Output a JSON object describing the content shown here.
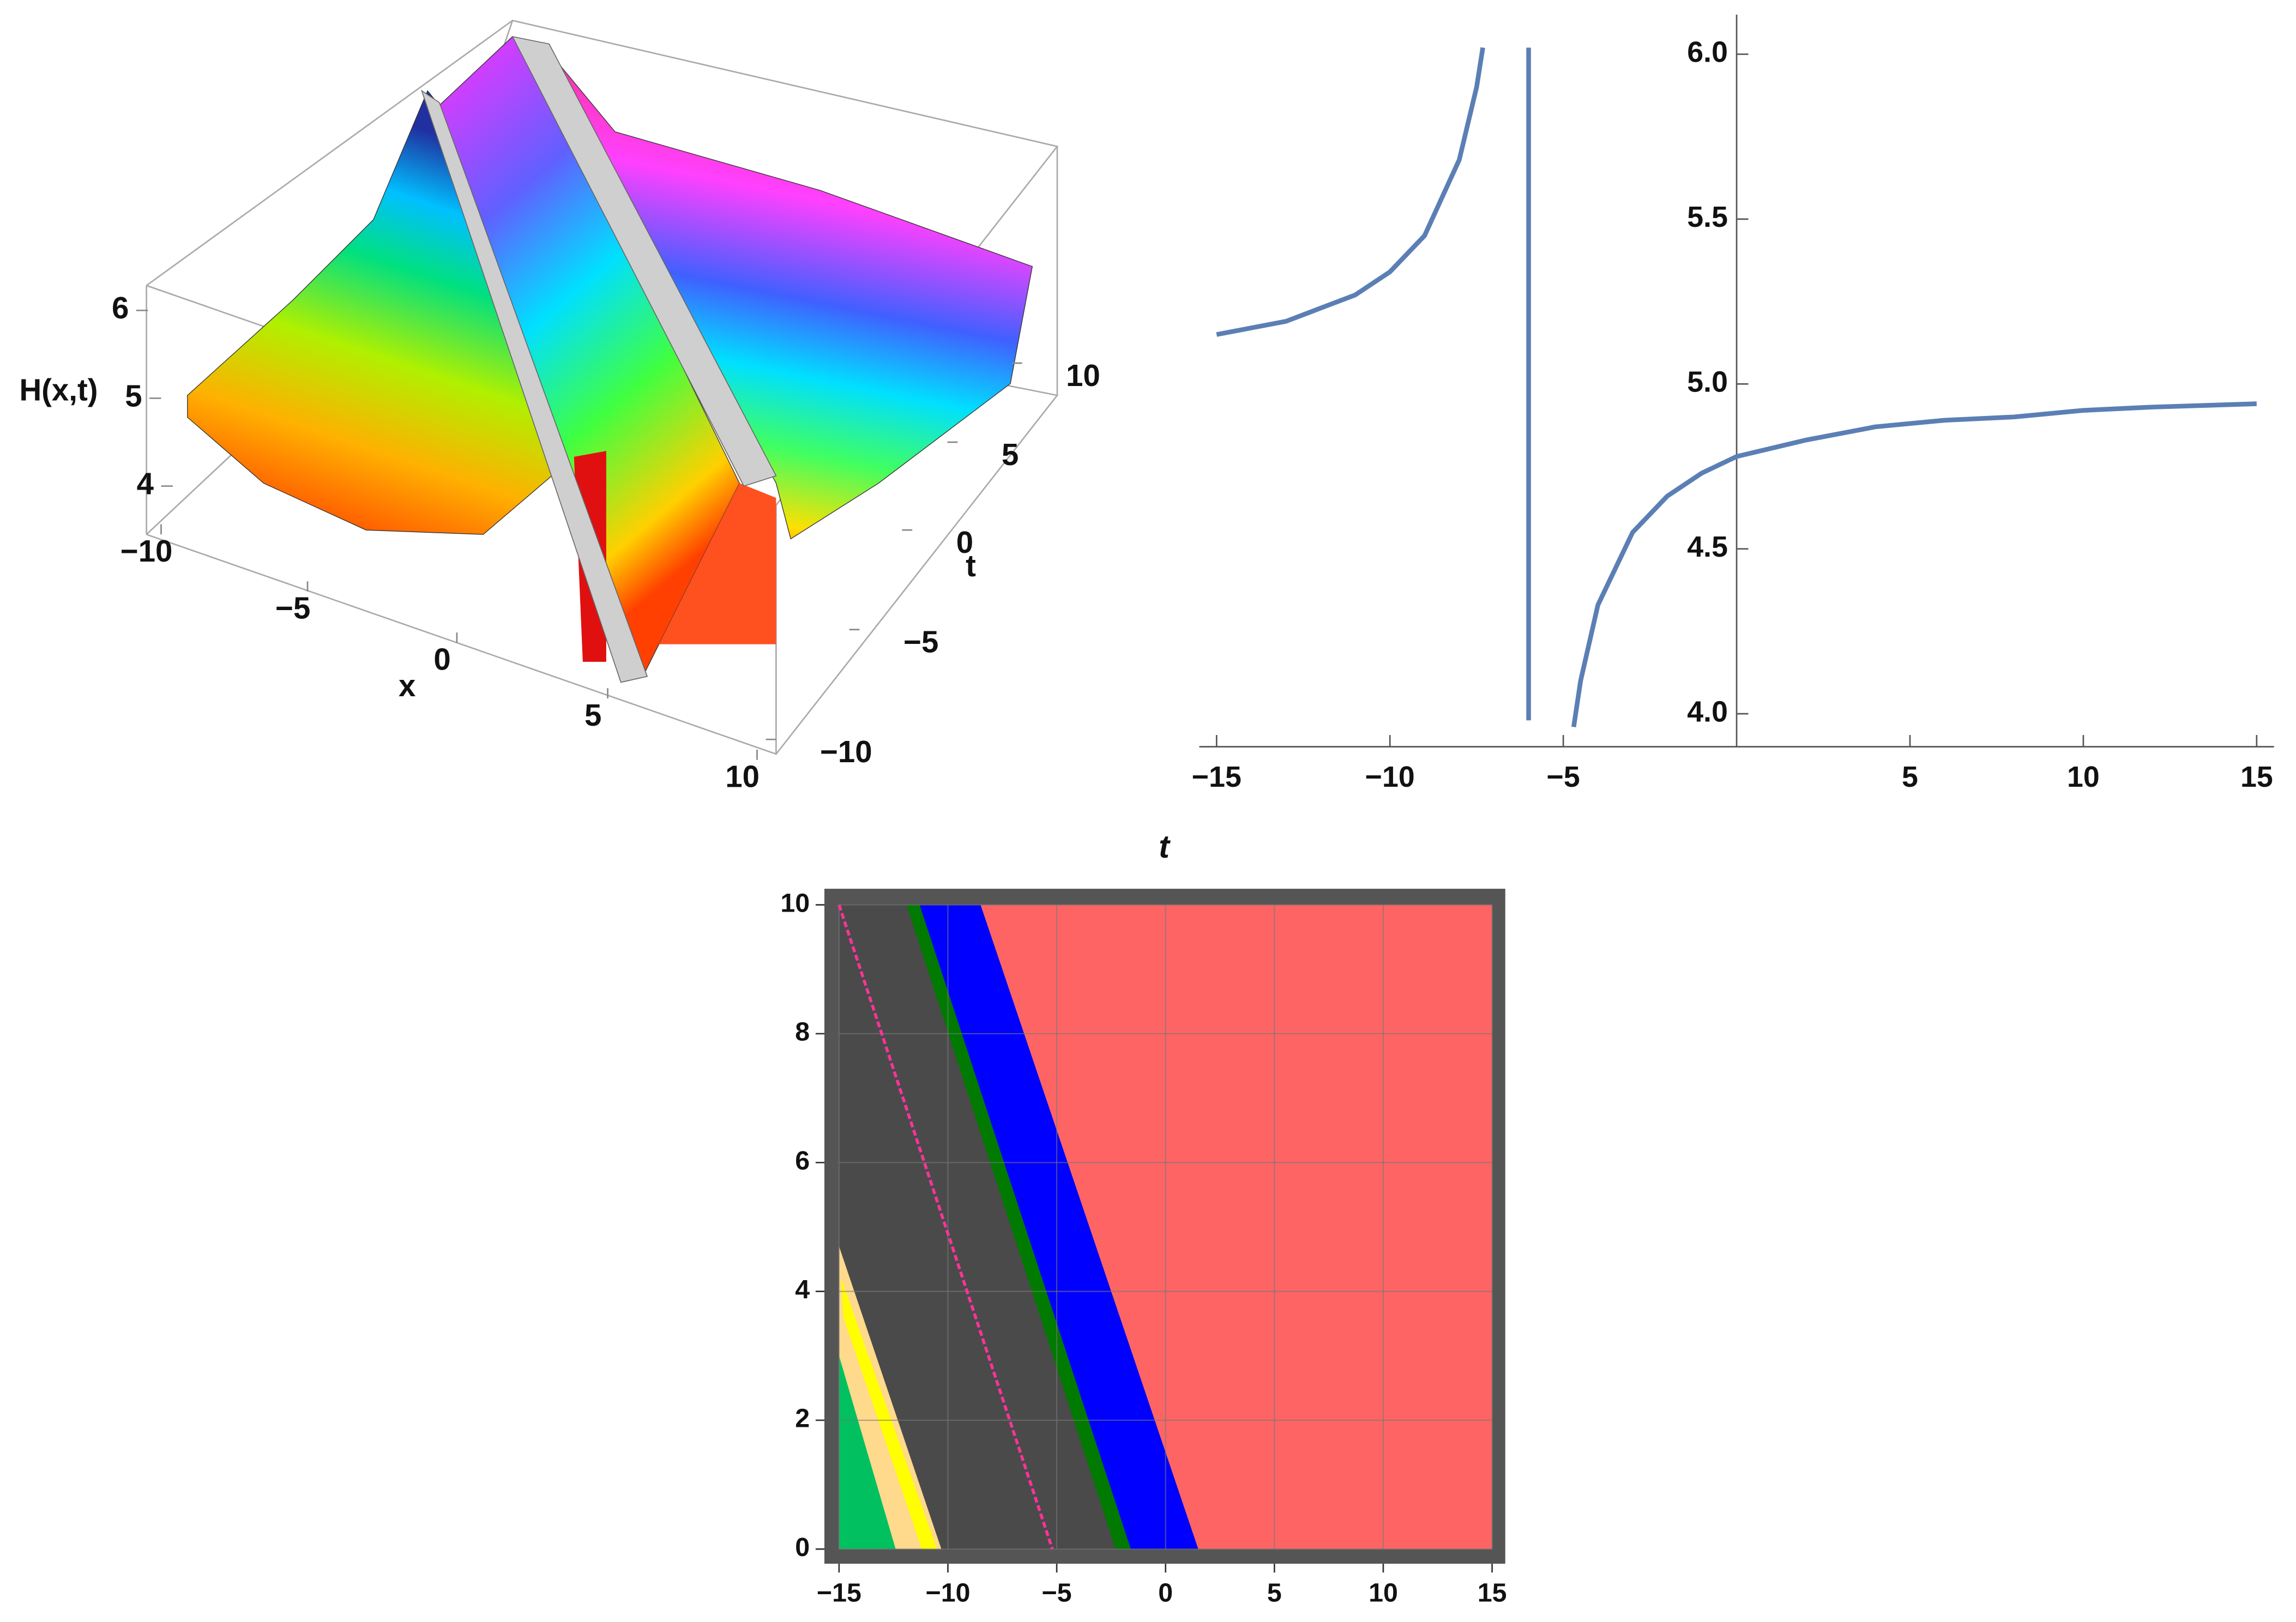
{
  "chart_data": [
    {
      "type": "surface",
      "zlabel": "H(x,t)",
      "xlabel": "x",
      "ylabel": "t",
      "zticks": [
        4,
        5,
        6
      ],
      "xticks": [
        {
          "value": -10,
          "label": "−10"
        },
        {
          "value": -5,
          "label": "−5"
        },
        0,
        5,
        10
      ],
      "yticks": [
        {
          "value": -10,
          "label": "−10"
        },
        {
          "value": -5,
          "label": "−5"
        },
        0,
        5,
        10
      ]
    },
    {
      "type": "line",
      "xlabel": "t",
      "x": [
        -15,
        -14,
        -13,
        -12,
        -11,
        -10,
        -9,
        -8,
        -7.5,
        -7.32,
        null,
        -6,
        -6,
        null,
        -4.7,
        -4.5,
        -4,
        -3,
        -2,
        -1,
        0,
        2,
        4,
        6,
        8,
        10,
        12,
        15
      ],
      "series": [
        {
          "color": "#5b7fb5",
          "values": [
            5.15,
            5.17,
            5.19,
            5.23,
            5.27,
            5.34,
            5.45,
            5.68,
            5.9,
            6.02,
            null,
            6.02,
            3.98,
            null,
            3.96,
            4.1,
            4.33,
            4.55,
            4.66,
            4.73,
            4.78,
            4.83,
            4.87,
            4.89,
            4.9,
            4.92,
            4.93,
            4.94
          ]
        }
      ],
      "xlim": [
        -15.5,
        15.5
      ],
      "ylim": [
        3.9,
        6.12
      ],
      "xticks": [
        {
          "value": -15,
          "label": "−15"
        },
        {
          "value": -10,
          "label": "−10"
        },
        {
          "value": -5,
          "label": "−5"
        },
        5,
        10,
        15
      ],
      "yticks": [
        {
          "value": 4,
          "label": "4.0"
        },
        4.5,
        {
          "value": 5,
          "label": "5.0"
        },
        5.5,
        {
          "value": 6,
          "label": "6.0"
        }
      ]
    },
    {
      "type": "contour",
      "xlim": [
        -15,
        15
      ],
      "ylim": [
        0,
        10
      ],
      "xticks": [
        {
          "value": -15,
          "label": "−15"
        },
        {
          "value": -10,
          "label": "−10"
        },
        {
          "value": -5,
          "label": "−5"
        },
        0,
        5,
        10,
        15
      ],
      "yticks": [
        0,
        2,
        4,
        6,
        8,
        10
      ],
      "grid": true,
      "background": "#4a4a4a",
      "regions": [
        {
          "color": "#ff6464",
          "points": [
            [
              -8.5,
              10
            ],
            [
              15,
              10
            ],
            [
              15,
              0
            ],
            [
              1.5,
              0
            ]
          ]
        },
        {
          "color": "#0000ff",
          "points": [
            [
              -11.3,
              10
            ],
            [
              -8.5,
              10
            ],
            [
              1.5,
              0
            ],
            [
              -1.6,
              0
            ]
          ]
        },
        {
          "color": "#007a00",
          "points": [
            [
              -11.9,
              10
            ],
            [
              -11.3,
              10
            ],
            [
              -1.6,
              0
            ],
            [
              -2.3,
              0
            ]
          ]
        },
        {
          "color": "#ffd98c",
          "points": [
            [
              -15,
              4.7
            ],
            [
              -10.3,
              0
            ],
            [
              -15,
              0
            ]
          ]
        },
        {
          "color": "#ffff00",
          "points": [
            [
              -14.8,
              3.6
            ],
            [
              -11.2,
              0
            ],
            [
              -10.5,
              0
            ],
            [
              -14.9,
              4.2
            ]
          ]
        },
        {
          "color": "#00c060",
          "points": [
            [
              -15,
              3
            ],
            [
              -12.4,
              0
            ],
            [
              -15,
              0
            ]
          ]
        }
      ],
      "lines": [
        {
          "color": "#ff3399",
          "points": [
            [
              -15,
              10
            ],
            [
              -5.2,
              0
            ]
          ]
        }
      ]
    }
  ]
}
